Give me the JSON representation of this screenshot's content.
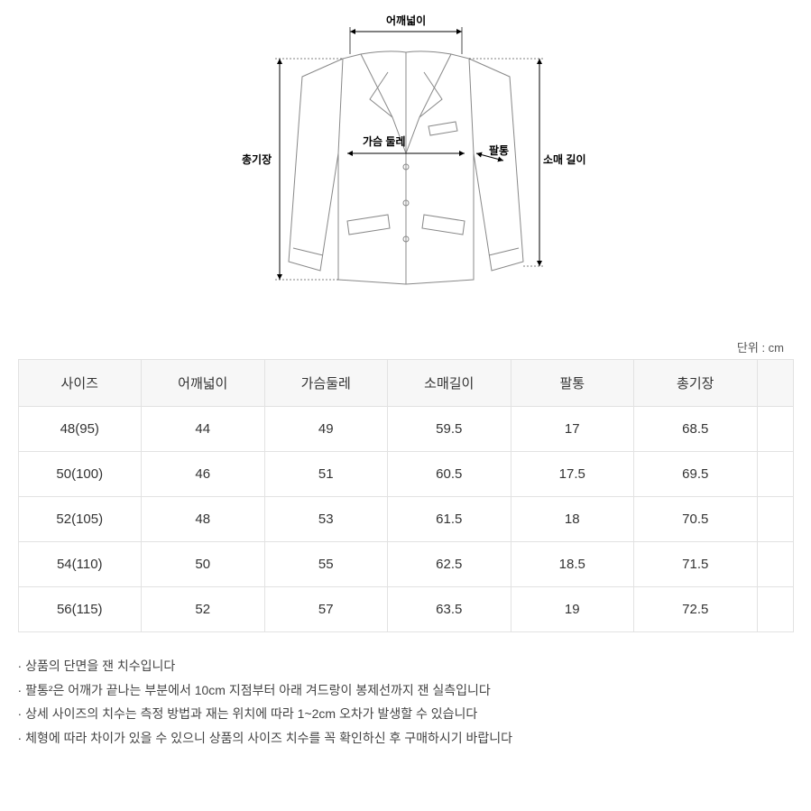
{
  "diagram": {
    "labels": {
      "shoulder": "어깨넓이",
      "chest": "가슴 둘레",
      "arm_width": "팔통",
      "sleeve": "소매 길이",
      "length": "총기장"
    },
    "stroke": "#888888",
    "stroke_width": 1,
    "arrow_color": "#000000"
  },
  "unit_label": "단위 : cm",
  "table": {
    "headers": [
      "사이즈",
      "어깨넓이",
      "가슴둘레",
      "소매길이",
      "팔통",
      "총기장",
      ""
    ],
    "rows": [
      [
        "48(95)",
        "44",
        "49",
        "59.5",
        "17",
        "68.5",
        ""
      ],
      [
        "50(100)",
        "46",
        "51",
        "60.5",
        "17.5",
        "69.5",
        ""
      ],
      [
        "52(105)",
        "48",
        "53",
        "61.5",
        "18",
        "70.5",
        ""
      ],
      [
        "54(110)",
        "50",
        "55",
        "62.5",
        "18.5",
        "71.5",
        ""
      ],
      [
        "56(115)",
        "52",
        "57",
        "63.5",
        "19",
        "72.5",
        ""
      ]
    ],
    "header_bg": "#f7f7f7",
    "border_color": "#e2e2e2",
    "text_color": "#333333",
    "header_fontsize": 15,
    "cell_fontsize": 15
  },
  "notes": [
    "상품의 단면을 잰 치수입니다",
    "팔통²은 어깨가 끝나는 부분에서 10cm 지점부터 아래 겨드랑이 봉제선까지 잰 실측입니다",
    "상세 사이즈의 치수는 측정 방법과 재는 위치에 따라 1~2cm 오차가 발생할 수 있습니다",
    "체형에 따라 차이가 있을 수 있으니 상품의 사이즈 치수를 꼭 확인하신 후 구매하시기 바랍니다"
  ],
  "colors": {
    "background": "#ffffff",
    "text": "#333333",
    "notes_text": "#444444",
    "unit_text": "#555555"
  }
}
